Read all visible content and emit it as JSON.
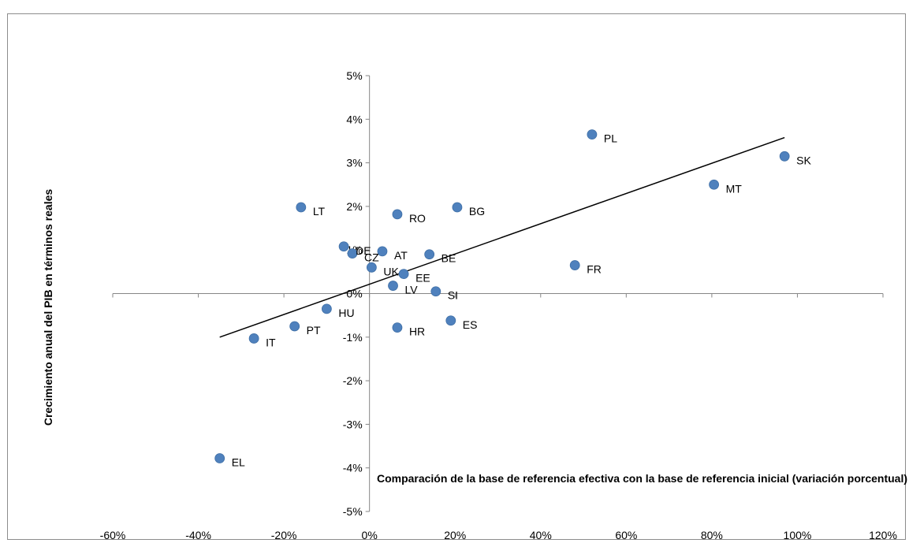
{
  "chart_data": {
    "type": "scatter",
    "title": "",
    "xlabel": "Comparación de la base de referencia efectiva con la base de referencia inicial (variación porcentual)",
    "ylabel": "Crecimiento anual del PIB en términos reales",
    "xlim": [
      -60,
      120
    ],
    "ylim": [
      -5,
      5
    ],
    "x_ticks": [
      "-60%",
      "-40%",
      "-20%",
      "0%",
      "20%",
      "40%",
      "60%",
      "80%",
      "100%",
      "120%"
    ],
    "y_ticks": [
      "5%",
      "4%",
      "3%",
      "2%",
      "1%",
      "0%",
      "-1%",
      "-2%",
      "-3%",
      "-4%",
      "-5%"
    ],
    "grid": false,
    "point_color": "#4f81bd",
    "trendline_color": "#000000",
    "points": [
      {
        "label": "PL",
        "x": 52,
        "y": 3.65
      },
      {
        "label": "SK",
        "x": 97,
        "y": 3.15
      },
      {
        "label": "MT",
        "x": 80.5,
        "y": 2.5
      },
      {
        "label": "LT",
        "x": -16,
        "y": 1.98
      },
      {
        "label": "RO",
        "x": 6.5,
        "y": 1.82
      },
      {
        "label": "BG",
        "x": 20.5,
        "y": 1.98
      },
      {
        "label": "DE",
        "x": -6,
        "y": 1.08
      },
      {
        "label": "CZ",
        "x": -4,
        "y": 0.92
      },
      {
        "label": "AT",
        "x": 3,
        "y": 0.97
      },
      {
        "label": "BE",
        "x": 14,
        "y": 0.9
      },
      {
        "label": "FR",
        "x": 48,
        "y": 0.65
      },
      {
        "label": "UK",
        "x": 0.5,
        "y": 0.6
      },
      {
        "label": "EE",
        "x": 8,
        "y": 0.45
      },
      {
        "label": "LV",
        "x": 5.5,
        "y": 0.18
      },
      {
        "label": "SI",
        "x": 15.5,
        "y": 0.05
      },
      {
        "label": "HU",
        "x": -10,
        "y": -0.35
      },
      {
        "label": "PT",
        "x": -17.5,
        "y": -0.75
      },
      {
        "label": "IT",
        "x": -27,
        "y": -1.03
      },
      {
        "label": "HR",
        "x": 6.5,
        "y": -0.78
      },
      {
        "label": "ES",
        "x": 19,
        "y": -0.62
      },
      {
        "label": "EL",
        "x": -35,
        "y": -3.78
      }
    ],
    "trendline": {
      "x": [
        -35,
        97
      ],
      "y": [
        -1.0,
        3.58
      ]
    }
  }
}
